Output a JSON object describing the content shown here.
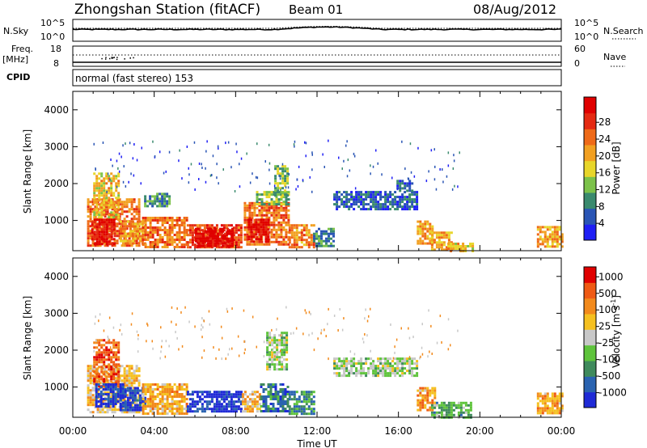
{
  "header": {
    "title": "Zhongshan Station (fitACF)",
    "beam": "Beam 01",
    "date": "08/Aug/2012"
  },
  "top_panels": {
    "nsky_label": "N.Sky",
    "nsky_ticks": [
      "10^5",
      "10^0"
    ],
    "nsearch_label": "N.Search",
    "nsearch_ticks": [
      "10^5",
      "10^0"
    ],
    "freq_label": "Freq.",
    "freq_unit": "[MHz]",
    "freq_ticks": [
      "18",
      "8"
    ],
    "nave_label": "Nave",
    "nave_ticks": [
      "60",
      "0"
    ],
    "cpid_label": "CPID",
    "cpid_text": "normal (fast stereo) 153"
  },
  "chart_data": [
    {
      "type": "heatmap",
      "name": "power",
      "ylabel": "Slant Range [km]",
      "ylim": [
        180,
        4500
      ],
      "yticks": [
        "1000",
        "2000",
        "3000",
        "4000"
      ],
      "xlim_hours": [
        0,
        24
      ],
      "colorbar": {
        "label": "Power [dB]",
        "ticks": [
          "4",
          "8",
          "12",
          "16",
          "20",
          "24",
          "28"
        ],
        "colors": [
          "#1f1ff5",
          "#2a55b5",
          "#3a8a6e",
          "#7cc24a",
          "#e8d62a",
          "#f2a021",
          "#ef6a18",
          "#e52a12",
          "#e00000"
        ]
      },
      "patches": [
        {
          "t": [
            0.7,
            3.3
          ],
          "r": [
            350,
            1600
          ],
          "level": 0.72
        },
        {
          "t": [
            1.0,
            2.3
          ],
          "r": [
            1000,
            2300
          ],
          "level": 0.55
        },
        {
          "t": [
            0.9,
            2.0
          ],
          "r": [
            350,
            1050
          ],
          "level": 0.92
        },
        {
          "t": [
            2.3,
            3.6
          ],
          "r": [
            400,
            1000
          ],
          "level": 0.62
        },
        {
          "t": [
            3.4,
            5.6
          ],
          "r": [
            280,
            1100
          ],
          "level": 0.7
        },
        {
          "t": [
            3.5,
            4.7
          ],
          "r": [
            1400,
            1750
          ],
          "level": 0.28
        },
        {
          "t": [
            5.6,
            8.3
          ],
          "r": [
            280,
            900
          ],
          "level": 0.8
        },
        {
          "t": [
            6.0,
            7.8
          ],
          "r": [
            330,
            800
          ],
          "level": 0.98
        },
        {
          "t": [
            8.4,
            10.6
          ],
          "r": [
            330,
            1500
          ],
          "level": 0.72
        },
        {
          "t": [
            8.6,
            9.6
          ],
          "r": [
            450,
            1050
          ],
          "level": 0.94
        },
        {
          "t": [
            9.0,
            10.6
          ],
          "r": [
            1450,
            1800
          ],
          "level": 0.4
        },
        {
          "t": [
            9.9,
            10.5
          ],
          "r": [
            1700,
            2500
          ],
          "level": 0.4
        },
        {
          "t": [
            10.6,
            11.9
          ],
          "r": [
            300,
            900
          ],
          "level": 0.68
        },
        {
          "t": [
            11.8,
            12.8
          ],
          "r": [
            300,
            800
          ],
          "level": 0.25
        },
        {
          "t": [
            12.8,
            16.9
          ],
          "r": [
            1300,
            1800
          ],
          "level": 0.18
        },
        {
          "t": [
            15.9,
            16.7
          ],
          "r": [
            1800,
            2100
          ],
          "level": 0.2
        },
        {
          "t": [
            16.9,
            17.7
          ],
          "r": [
            400,
            1000
          ],
          "level": 0.6
        },
        {
          "t": [
            17.6,
            18.6
          ],
          "r": [
            200,
            700
          ],
          "level": 0.62
        },
        {
          "t": [
            18.4,
            19.6
          ],
          "r": [
            180,
            400
          ],
          "level": 0.55
        },
        {
          "t": [
            22.8,
            24.0
          ],
          "r": [
            300,
            850
          ],
          "level": 0.62
        }
      ]
    },
    {
      "type": "heatmap",
      "name": "velocity",
      "ylabel": "Slant Range [km]",
      "ylim": [
        180,
        4500
      ],
      "yticks": [
        "1000",
        "2000",
        "3000",
        "4000"
      ],
      "xlim_hours": [
        0,
        24
      ],
      "xticks": [
        "00:00",
        "04:00",
        "08:00",
        "12:00",
        "16:00",
        "20:00",
        "00:00"
      ],
      "xlabel": "Time UT",
      "colorbar": {
        "label": "Velocity [m s",
        "label_sup": "-1",
        "label_end": "]",
        "ticks": [
          "1000",
          "500",
          "100",
          "25",
          "-25",
          "-100",
          "-500",
          "-1000"
        ],
        "colors": [
          "#1f2ad6",
          "#2a63b0",
          "#3f8a5c",
          "#5fc43c",
          "#c8c8c8",
          "#f5c020",
          "#f28a1c",
          "#ef5a14",
          "#e00000"
        ]
      },
      "patches": [
        {
          "t": [
            0.7,
            3.3
          ],
          "r": [
            350,
            1600
          ],
          "level": 0.6
        },
        {
          "t": [
            1.0,
            2.3
          ],
          "r": [
            1000,
            2300
          ],
          "level": 0.82
        },
        {
          "t": [
            1.1,
            2.6
          ],
          "r": [
            450,
            1100
          ],
          "level": 0.08
        },
        {
          "t": [
            2.3,
            3.6
          ],
          "r": [
            400,
            1000
          ],
          "level": 0.1
        },
        {
          "t": [
            3.4,
            5.6
          ],
          "r": [
            280,
            1100
          ],
          "level": 0.65
        },
        {
          "t": [
            5.6,
            8.3
          ],
          "r": [
            330,
            900
          ],
          "level": 0.07
        },
        {
          "t": [
            8.3,
            9.2
          ],
          "r": [
            350,
            900
          ],
          "level": 0.62
        },
        {
          "t": [
            9.2,
            10.6
          ],
          "r": [
            350,
            1100
          ],
          "level": 0.22
        },
        {
          "t": [
            9.5,
            10.5
          ],
          "r": [
            1500,
            2500
          ],
          "level": 0.45
        },
        {
          "t": [
            10.6,
            11.9
          ],
          "r": [
            300,
            900
          ],
          "level": 0.25
        },
        {
          "t": [
            12.8,
            16.9
          ],
          "r": [
            1300,
            1800
          ],
          "level": 0.45
        },
        {
          "t": [
            16.9,
            17.8
          ],
          "r": [
            400,
            1000
          ],
          "level": 0.68
        },
        {
          "t": [
            17.6,
            19.6
          ],
          "r": [
            180,
            600
          ],
          "level": 0.35
        },
        {
          "t": [
            22.8,
            24.0
          ],
          "r": [
            300,
            850
          ],
          "level": 0.68
        }
      ]
    }
  ]
}
